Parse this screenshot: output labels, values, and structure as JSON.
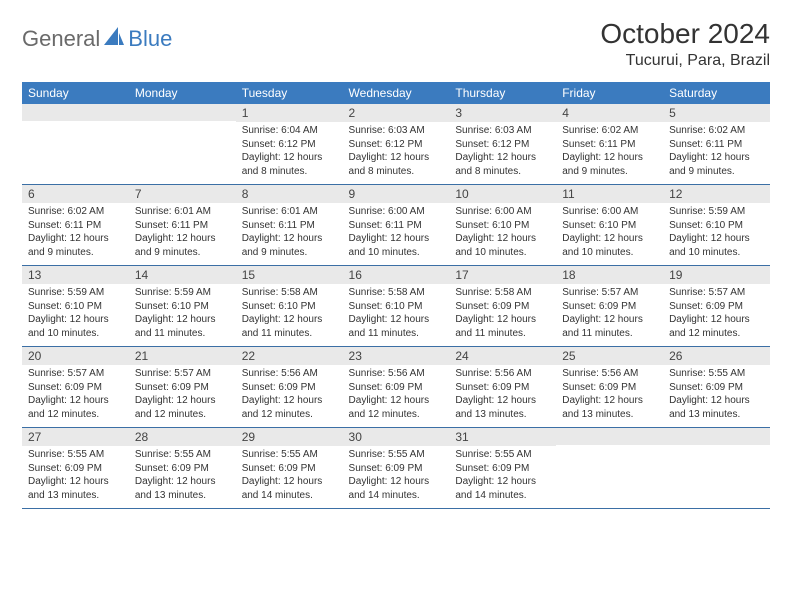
{
  "logo": {
    "text1": "General",
    "text2": "Blue"
  },
  "title": "October 2024",
  "location": "Tucurui, Para, Brazil",
  "colors": {
    "header_bg": "#3b7bbf",
    "header_fg": "#ffffff",
    "daynum_bg": "#e9e9e9",
    "row_border": "#3b6fa5",
    "logo_gray": "#6a6a6a",
    "logo_blue": "#3b7bbf"
  },
  "dayNames": [
    "Sunday",
    "Monday",
    "Tuesday",
    "Wednesday",
    "Thursday",
    "Friday",
    "Saturday"
  ],
  "weeks": [
    [
      {
        "n": "",
        "sr": "",
        "ss": "",
        "dl": ""
      },
      {
        "n": "",
        "sr": "",
        "ss": "",
        "dl": ""
      },
      {
        "n": "1",
        "sr": "Sunrise: 6:04 AM",
        "ss": "Sunset: 6:12 PM",
        "dl": "Daylight: 12 hours and 8 minutes."
      },
      {
        "n": "2",
        "sr": "Sunrise: 6:03 AM",
        "ss": "Sunset: 6:12 PM",
        "dl": "Daylight: 12 hours and 8 minutes."
      },
      {
        "n": "3",
        "sr": "Sunrise: 6:03 AM",
        "ss": "Sunset: 6:12 PM",
        "dl": "Daylight: 12 hours and 8 minutes."
      },
      {
        "n": "4",
        "sr": "Sunrise: 6:02 AM",
        "ss": "Sunset: 6:11 PM",
        "dl": "Daylight: 12 hours and 9 minutes."
      },
      {
        "n": "5",
        "sr": "Sunrise: 6:02 AM",
        "ss": "Sunset: 6:11 PM",
        "dl": "Daylight: 12 hours and 9 minutes."
      }
    ],
    [
      {
        "n": "6",
        "sr": "Sunrise: 6:02 AM",
        "ss": "Sunset: 6:11 PM",
        "dl": "Daylight: 12 hours and 9 minutes."
      },
      {
        "n": "7",
        "sr": "Sunrise: 6:01 AM",
        "ss": "Sunset: 6:11 PM",
        "dl": "Daylight: 12 hours and 9 minutes."
      },
      {
        "n": "8",
        "sr": "Sunrise: 6:01 AM",
        "ss": "Sunset: 6:11 PM",
        "dl": "Daylight: 12 hours and 9 minutes."
      },
      {
        "n": "9",
        "sr": "Sunrise: 6:00 AM",
        "ss": "Sunset: 6:11 PM",
        "dl": "Daylight: 12 hours and 10 minutes."
      },
      {
        "n": "10",
        "sr": "Sunrise: 6:00 AM",
        "ss": "Sunset: 6:10 PM",
        "dl": "Daylight: 12 hours and 10 minutes."
      },
      {
        "n": "11",
        "sr": "Sunrise: 6:00 AM",
        "ss": "Sunset: 6:10 PM",
        "dl": "Daylight: 12 hours and 10 minutes."
      },
      {
        "n": "12",
        "sr": "Sunrise: 5:59 AM",
        "ss": "Sunset: 6:10 PM",
        "dl": "Daylight: 12 hours and 10 minutes."
      }
    ],
    [
      {
        "n": "13",
        "sr": "Sunrise: 5:59 AM",
        "ss": "Sunset: 6:10 PM",
        "dl": "Daylight: 12 hours and 10 minutes."
      },
      {
        "n": "14",
        "sr": "Sunrise: 5:59 AM",
        "ss": "Sunset: 6:10 PM",
        "dl": "Daylight: 12 hours and 11 minutes."
      },
      {
        "n": "15",
        "sr": "Sunrise: 5:58 AM",
        "ss": "Sunset: 6:10 PM",
        "dl": "Daylight: 12 hours and 11 minutes."
      },
      {
        "n": "16",
        "sr": "Sunrise: 5:58 AM",
        "ss": "Sunset: 6:10 PM",
        "dl": "Daylight: 12 hours and 11 minutes."
      },
      {
        "n": "17",
        "sr": "Sunrise: 5:58 AM",
        "ss": "Sunset: 6:09 PM",
        "dl": "Daylight: 12 hours and 11 minutes."
      },
      {
        "n": "18",
        "sr": "Sunrise: 5:57 AM",
        "ss": "Sunset: 6:09 PM",
        "dl": "Daylight: 12 hours and 11 minutes."
      },
      {
        "n": "19",
        "sr": "Sunrise: 5:57 AM",
        "ss": "Sunset: 6:09 PM",
        "dl": "Daylight: 12 hours and 12 minutes."
      }
    ],
    [
      {
        "n": "20",
        "sr": "Sunrise: 5:57 AM",
        "ss": "Sunset: 6:09 PM",
        "dl": "Daylight: 12 hours and 12 minutes."
      },
      {
        "n": "21",
        "sr": "Sunrise: 5:57 AM",
        "ss": "Sunset: 6:09 PM",
        "dl": "Daylight: 12 hours and 12 minutes."
      },
      {
        "n": "22",
        "sr": "Sunrise: 5:56 AM",
        "ss": "Sunset: 6:09 PM",
        "dl": "Daylight: 12 hours and 12 minutes."
      },
      {
        "n": "23",
        "sr": "Sunrise: 5:56 AM",
        "ss": "Sunset: 6:09 PM",
        "dl": "Daylight: 12 hours and 12 minutes."
      },
      {
        "n": "24",
        "sr": "Sunrise: 5:56 AM",
        "ss": "Sunset: 6:09 PM",
        "dl": "Daylight: 12 hours and 13 minutes."
      },
      {
        "n": "25",
        "sr": "Sunrise: 5:56 AM",
        "ss": "Sunset: 6:09 PM",
        "dl": "Daylight: 12 hours and 13 minutes."
      },
      {
        "n": "26",
        "sr": "Sunrise: 5:55 AM",
        "ss": "Sunset: 6:09 PM",
        "dl": "Daylight: 12 hours and 13 minutes."
      }
    ],
    [
      {
        "n": "27",
        "sr": "Sunrise: 5:55 AM",
        "ss": "Sunset: 6:09 PM",
        "dl": "Daylight: 12 hours and 13 minutes."
      },
      {
        "n": "28",
        "sr": "Sunrise: 5:55 AM",
        "ss": "Sunset: 6:09 PM",
        "dl": "Daylight: 12 hours and 13 minutes."
      },
      {
        "n": "29",
        "sr": "Sunrise: 5:55 AM",
        "ss": "Sunset: 6:09 PM",
        "dl": "Daylight: 12 hours and 14 minutes."
      },
      {
        "n": "30",
        "sr": "Sunrise: 5:55 AM",
        "ss": "Sunset: 6:09 PM",
        "dl": "Daylight: 12 hours and 14 minutes."
      },
      {
        "n": "31",
        "sr": "Sunrise: 5:55 AM",
        "ss": "Sunset: 6:09 PM",
        "dl": "Daylight: 12 hours and 14 minutes."
      },
      {
        "n": "",
        "sr": "",
        "ss": "",
        "dl": ""
      },
      {
        "n": "",
        "sr": "",
        "ss": "",
        "dl": ""
      }
    ]
  ]
}
